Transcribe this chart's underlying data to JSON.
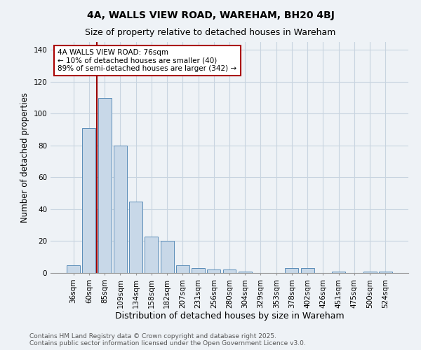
{
  "title": "4A, WALLS VIEW ROAD, WAREHAM, BH20 4BJ",
  "subtitle": "Size of property relative to detached houses in Wareham",
  "xlabel": "Distribution of detached houses by size in Wareham",
  "ylabel": "Number of detached properties",
  "footer_line1": "Contains HM Land Registry data © Crown copyright and database right 2025.",
  "footer_line2": "Contains public sector information licensed under the Open Government Licence v3.0.",
  "bin_labels": [
    "36sqm",
    "60sqm",
    "85sqm",
    "109sqm",
    "134sqm",
    "158sqm",
    "182sqm",
    "207sqm",
    "231sqm",
    "256sqm",
    "280sqm",
    "304sqm",
    "329sqm",
    "353sqm",
    "378sqm",
    "402sqm",
    "426sqm",
    "451sqm",
    "475sqm",
    "500sqm",
    "524sqm"
  ],
  "bar_values": [
    5,
    91,
    110,
    80,
    45,
    23,
    20,
    5,
    3,
    2,
    2,
    1,
    0,
    0,
    3,
    3,
    0,
    1,
    0,
    1,
    1
  ],
  "bar_color": "#c8d8e8",
  "bar_edge_color": "#5b8db8",
  "grid_color": "#c8d4e0",
  "background_color": "#eef2f6",
  "vline_color": "#990000",
  "annotation_text": "4A WALLS VIEW ROAD: 76sqm\n← 10% of detached houses are smaller (40)\n89% of semi-detached houses are larger (342) →",
  "annotation_box_color": "white",
  "annotation_box_edge_color": "#aa0000",
  "ylim": [
    0,
    145
  ],
  "yticks": [
    0,
    20,
    40,
    60,
    80,
    100,
    120,
    140
  ],
  "title_fontsize": 10,
  "subtitle_fontsize": 9,
  "xlabel_fontsize": 9,
  "ylabel_fontsize": 8.5,
  "tick_fontsize": 7.5,
  "footer_fontsize": 6.5,
  "annot_fontsize": 7.5
}
